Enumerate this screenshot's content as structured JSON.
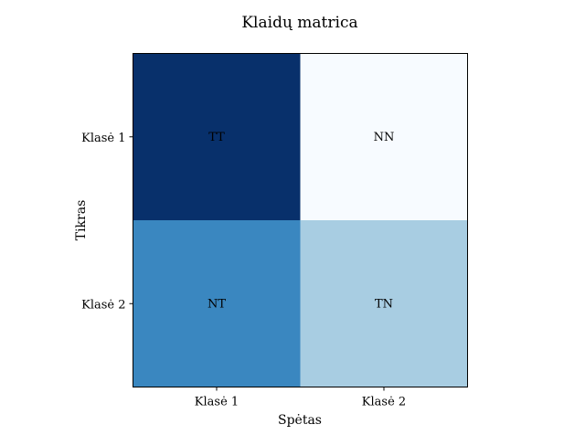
{
  "chart_data": {
    "type": "heatmap",
    "title": "Klaidų matrica",
    "xlabel": "Spėtas",
    "ylabel": "Tikras",
    "x_categories": [
      "Klasė 1",
      "Klasė 2"
    ],
    "y_categories": [
      "Klasė 1",
      "Klasė 2"
    ],
    "cells": [
      [
        {
          "label": "TT",
          "color": "#08306b"
        },
        {
          "label": "NN",
          "color": "#f7fbff"
        }
      ],
      [
        {
          "label": "NT",
          "color": "#3a87c0"
        },
        {
          "label": "TN",
          "color": "#a8cde2"
        }
      ]
    ],
    "colormap": "Blues",
    "grid": false
  }
}
